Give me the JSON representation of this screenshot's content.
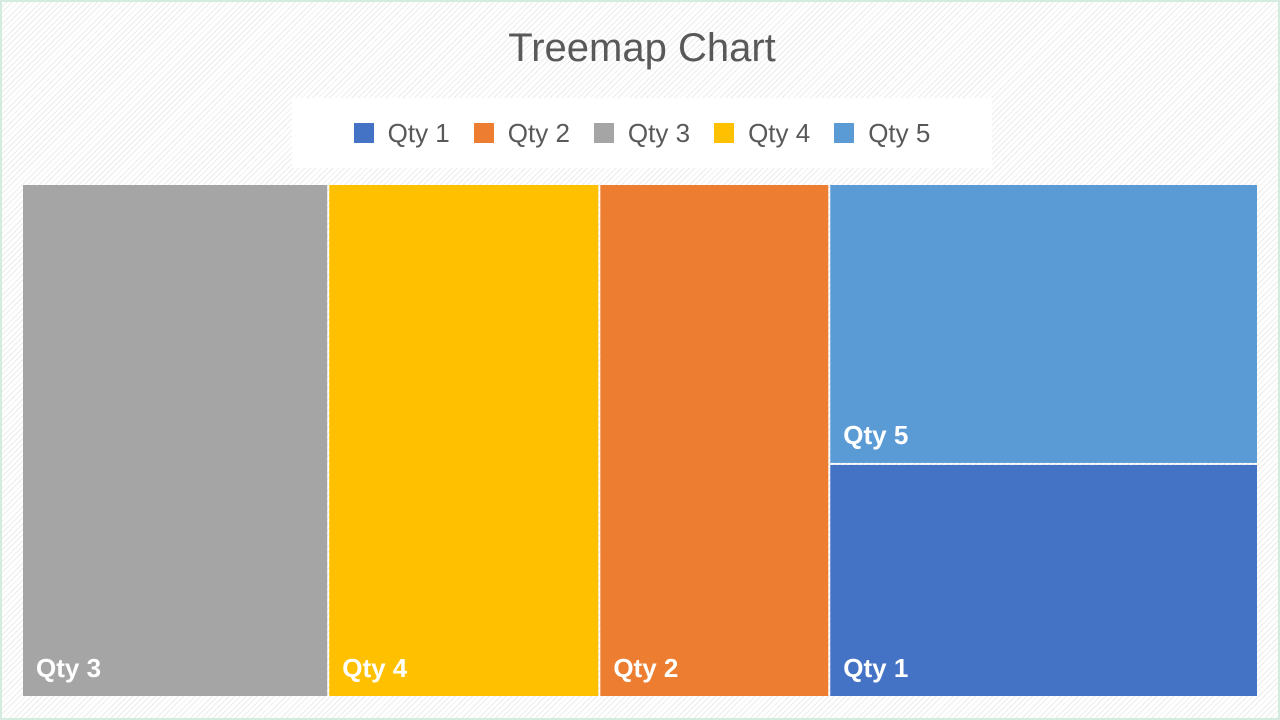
{
  "chart_data": {
    "type": "treemap",
    "title": "Treemap Chart",
    "legend_position": "top",
    "legend": [
      {
        "label": "Qty 1",
        "color": "#4472c4"
      },
      {
        "label": "Qty 2",
        "color": "#ed7d31"
      },
      {
        "label": "Qty 3",
        "color": "#a5a5a5"
      },
      {
        "label": "Qty 4",
        "color": "#ffc000"
      },
      {
        "label": "Qty 5",
        "color": "#5b9bd5"
      }
    ],
    "items": [
      {
        "label": "Qty 3",
        "value": 305,
        "color": "#a5a5a5"
      },
      {
        "label": "Qty 4",
        "value": 270,
        "color": "#ffc000"
      },
      {
        "label": "Qty 2",
        "value": 229,
        "color": "#ed7d31"
      },
      {
        "label": "Qty 5",
        "value": 233,
        "color": "#5b9bd5"
      },
      {
        "label": "Qty 1",
        "value": 194,
        "color": "#4472c4"
      }
    ]
  }
}
